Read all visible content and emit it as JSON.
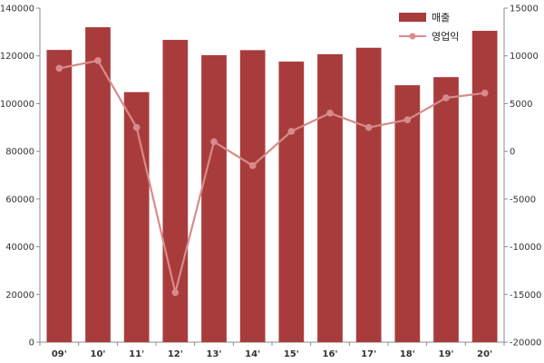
{
  "chart_data": {
    "type": "bar",
    "categories": [
      "09'",
      "10'",
      "11'",
      "12'",
      "13'",
      "14'",
      "15'",
      "16'",
      "17'",
      "18'",
      "19'",
      "20'"
    ],
    "series": [
      {
        "name": "매출",
        "type": "bar",
        "axis": "left",
        "color": "#a83c3c",
        "values": [
          122500,
          132000,
          104800,
          126700,
          120300,
          122400,
          117600,
          120700,
          123400,
          107700,
          111100,
          130500
        ]
      },
      {
        "name": "영업익",
        "type": "line",
        "axis": "right",
        "color": "#d98a8a",
        "values": [
          8700,
          9500,
          2500,
          -14800,
          1000,
          -1500,
          2100,
          4000,
          2500,
          3300,
          5600,
          6100
        ]
      }
    ],
    "y_left": {
      "range": [
        0,
        140000
      ],
      "ticks": [
        "0",
        "20000",
        "40000",
        "60000",
        "80000",
        "100000",
        "120000",
        "140000"
      ]
    },
    "y_right": {
      "range": [
        -20000,
        15000
      ],
      "ticks": [
        "-20000",
        "-15000",
        "-10000",
        "-5000",
        "0",
        "5000",
        "10000",
        "15000"
      ]
    },
    "grid": false,
    "legend": "top-right"
  }
}
